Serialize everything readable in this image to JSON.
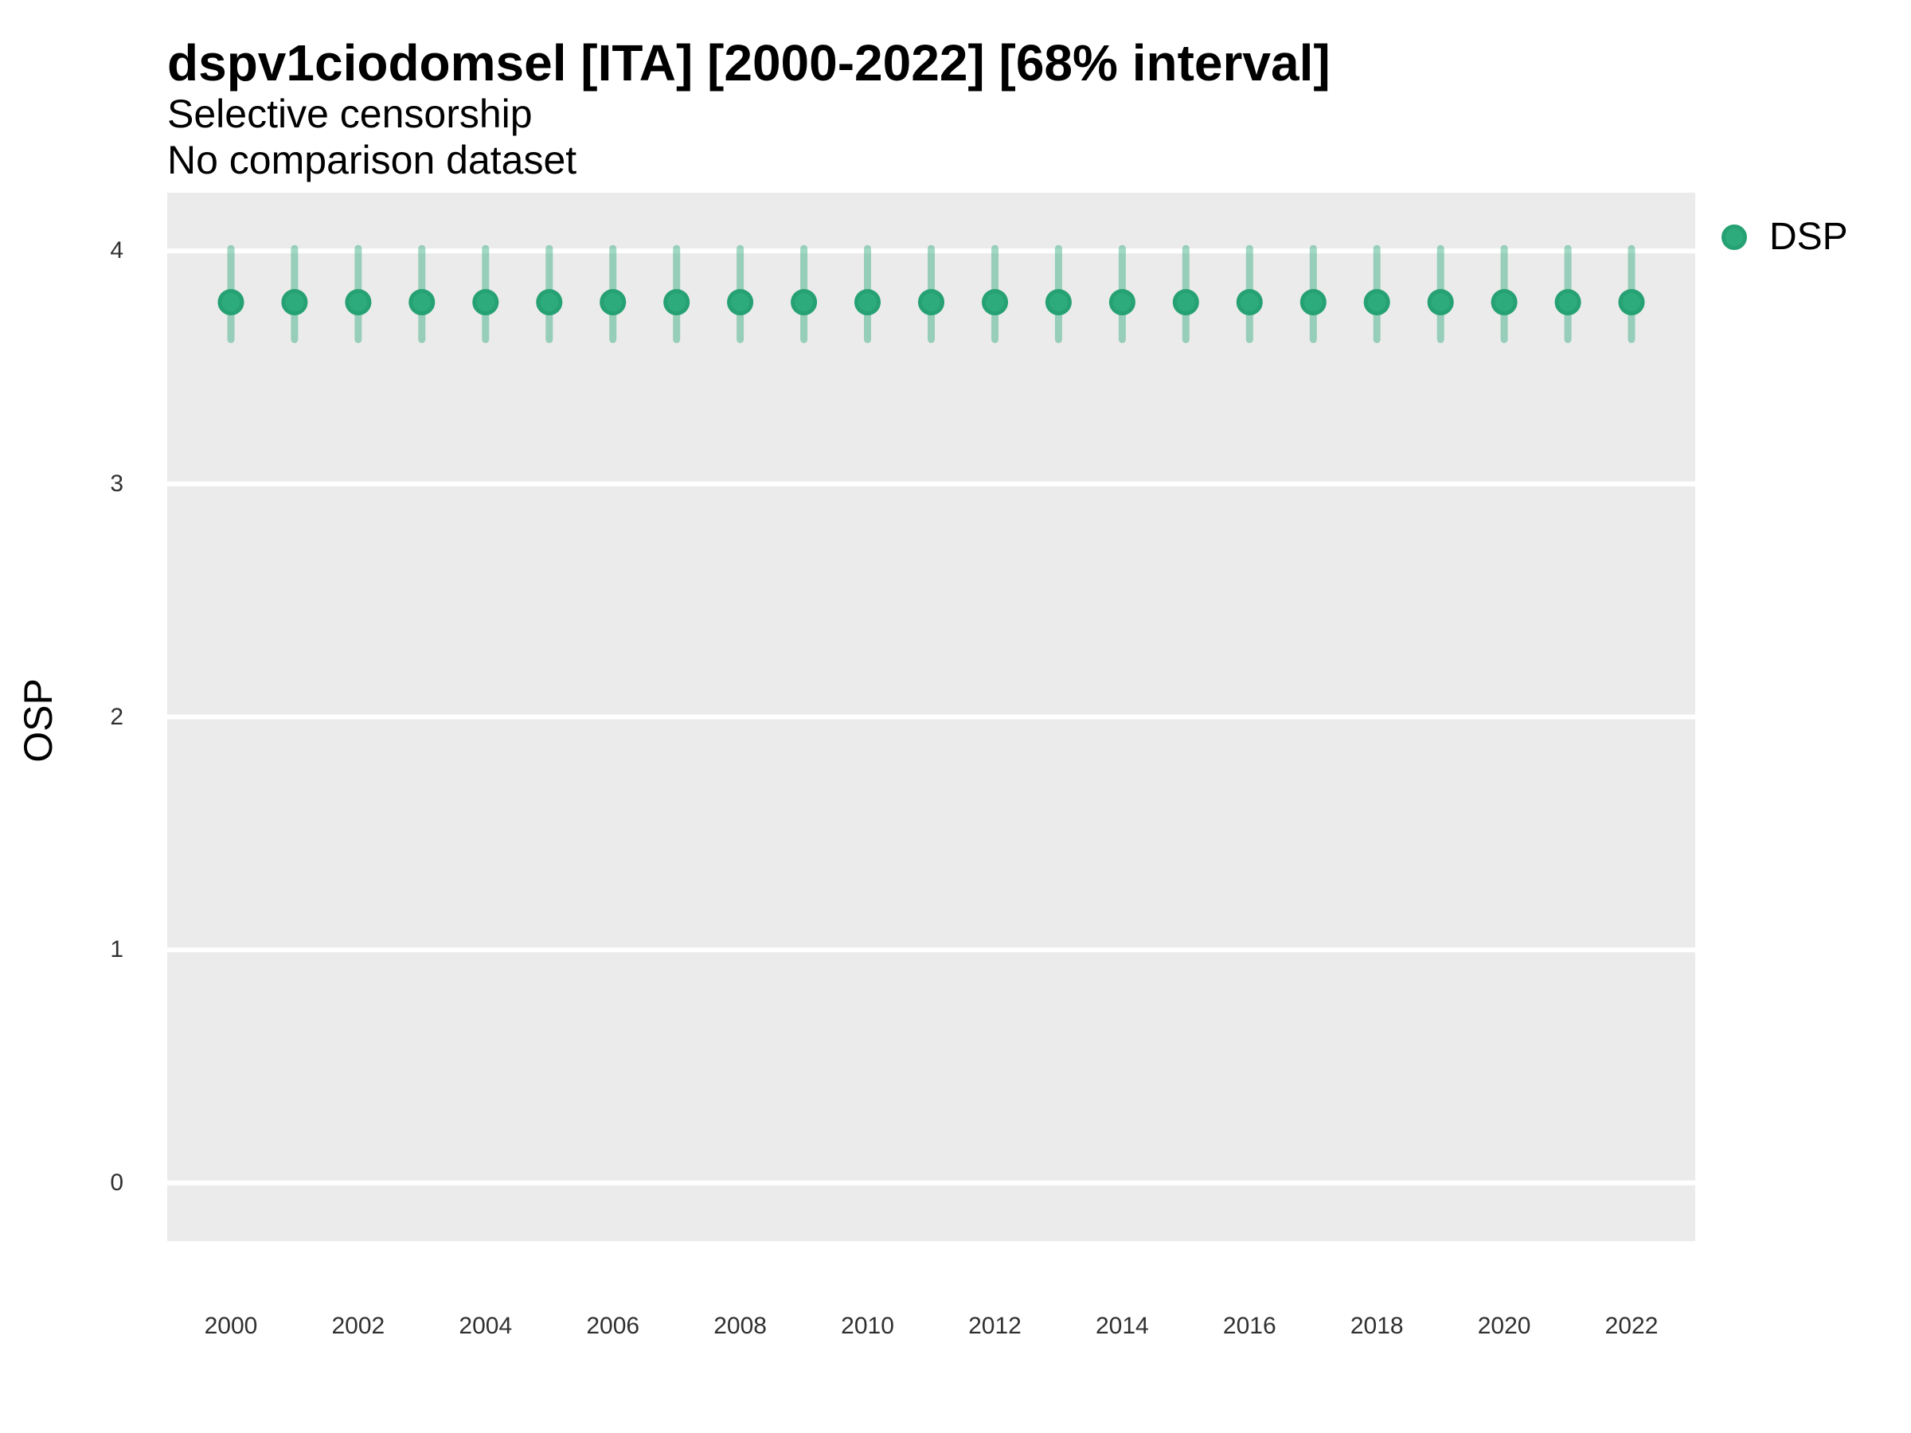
{
  "chart_data": {
    "type": "scatter",
    "variant": "pointrange",
    "title": "dspv1ciodomsel [ITA] [2000-2022] [68% interval]",
    "subtitle": [
      "Selective censorship",
      "No comparison dataset"
    ],
    "xlabel": "",
    "ylabel": "OSP",
    "legend_position": "right",
    "grid": "horizontal-major-only",
    "xlim": [
      1999,
      2023
    ],
    "ylim": [
      -0.25,
      4.25
    ],
    "xticks": [
      2000,
      2002,
      2004,
      2006,
      2008,
      2010,
      2012,
      2014,
      2016,
      2018,
      2020,
      2022
    ],
    "yticks": [
      0,
      1,
      2,
      3,
      4
    ],
    "x": [
      2000,
      2001,
      2002,
      2003,
      2004,
      2005,
      2006,
      2007,
      2008,
      2009,
      2010,
      2011,
      2012,
      2013,
      2014,
      2015,
      2016,
      2017,
      2018,
      2019,
      2020,
      2021,
      2022
    ],
    "series": [
      {
        "name": "DSP",
        "estimates": [
          3.78,
          3.78,
          3.78,
          3.78,
          3.78,
          3.78,
          3.78,
          3.78,
          3.78,
          3.78,
          3.78,
          3.78,
          3.78,
          3.78,
          3.78,
          3.78,
          3.78,
          3.78,
          3.78,
          3.78,
          3.78,
          3.78,
          3.78
        ],
        "lower_68": [
          3.62,
          3.62,
          3.62,
          3.62,
          3.62,
          3.62,
          3.62,
          3.62,
          3.62,
          3.62,
          3.62,
          3.62,
          3.62,
          3.62,
          3.62,
          3.62,
          3.62,
          3.62,
          3.62,
          3.62,
          3.62,
          3.62,
          3.62
        ],
        "upper_68": [
          4.01,
          4.01,
          4.01,
          4.01,
          4.01,
          4.01,
          4.01,
          4.01,
          4.01,
          4.01,
          4.01,
          4.01,
          4.01,
          4.01,
          4.01,
          4.01,
          4.01,
          4.01,
          4.01,
          4.01,
          4.01,
          4.01,
          4.01
        ]
      }
    ],
    "style": {
      "point_fill": "#2eab7d",
      "point_stroke": "#26a173",
      "interval_color": "rgba(46,171,125,0.45)",
      "panel_background": "#ebebeb",
      "grid_color": "#ffffff",
      "tick_label_color": "#303030",
      "text_color": "#000000"
    }
  }
}
